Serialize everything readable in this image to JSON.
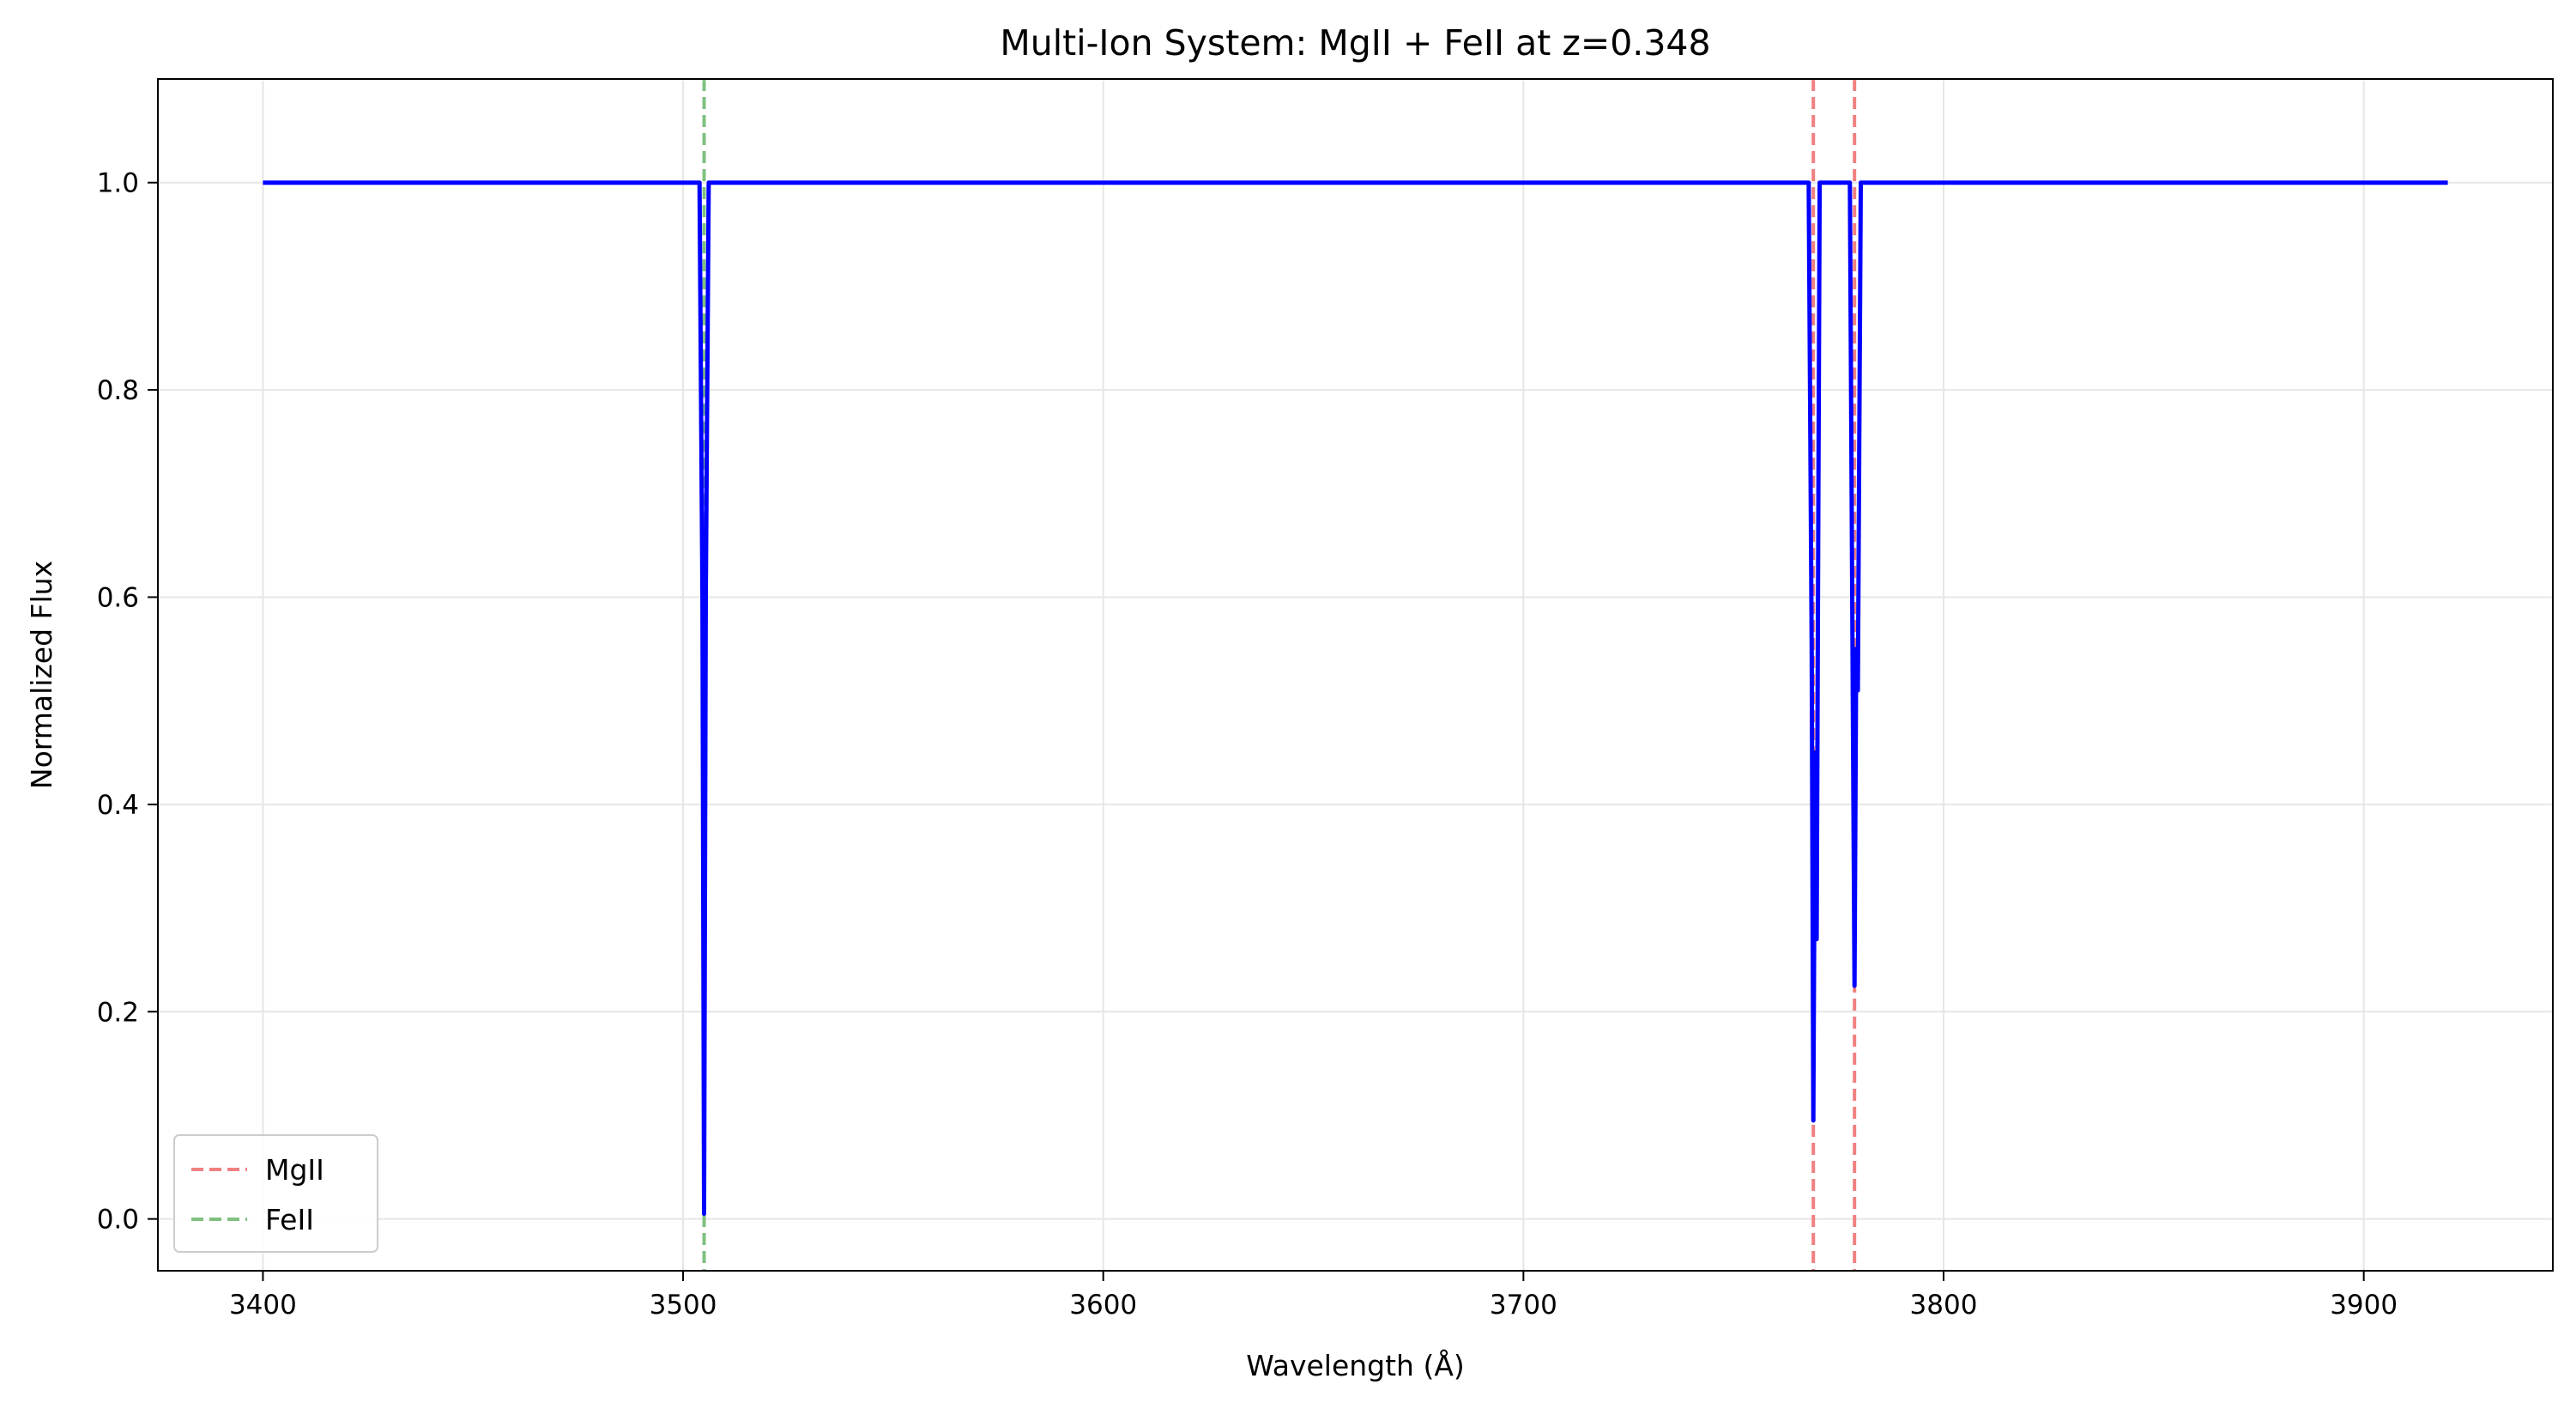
{
  "chart_data": {
    "type": "line",
    "title": "Multi-Ion System: MgII + FeII at z=0.348",
    "xlabel": "Wavelength (Å)",
    "ylabel": "Normalized Flux",
    "xlim": [
      3375,
      3945
    ],
    "ylim": [
      -0.05,
      1.1
    ],
    "xticks": [
      3400,
      3500,
      3600,
      3700,
      3800,
      3900
    ],
    "yticks": [
      0.0,
      0.2,
      0.4,
      0.6,
      0.8,
      1.0
    ],
    "xtick_labels": [
      "3400",
      "3500",
      "3600",
      "3700",
      "3800",
      "3900"
    ],
    "ytick_labels": [
      "0.0",
      "0.2",
      "0.4",
      "0.6",
      "0.8",
      "1.0"
    ],
    "grid": true,
    "legend_position": "lower-left",
    "spectrum": {
      "color": "#0000ff",
      "x": [
        3400,
        3503.9,
        3504.6,
        3505.0,
        3505.4,
        3506.1,
        3767.9,
        3768.6,
        3769.0,
        3769.4,
        3769.8,
        3770.2,
        3770.5,
        3771.2,
        3777.7,
        3778.4,
        3778.8,
        3779.2,
        3779.6,
        3780.0,
        3780.3,
        3781.0,
        3920
      ],
      "y": [
        1.0,
        1.0,
        0.6,
        0.005,
        0.6,
        1.0,
        1.0,
        0.55,
        0.095,
        0.45,
        0.27,
        0.7,
        1.0,
        1.0,
        1.0,
        0.5,
        0.225,
        0.55,
        0.51,
        0.8,
        1.0,
        1.0,
        1.0
      ]
    },
    "markers": [
      {
        "name": "MgII",
        "color": "#f08080",
        "x": [
          3769.0,
          3778.8
        ]
      },
      {
        "name": "FeII",
        "color": "#80c080",
        "x": [
          3505.0
        ]
      }
    ],
    "colors": {
      "mgii": "#f08080",
      "feii": "#80c080",
      "spectrum": "#0000ff",
      "grid": "#e6e6e6"
    }
  }
}
